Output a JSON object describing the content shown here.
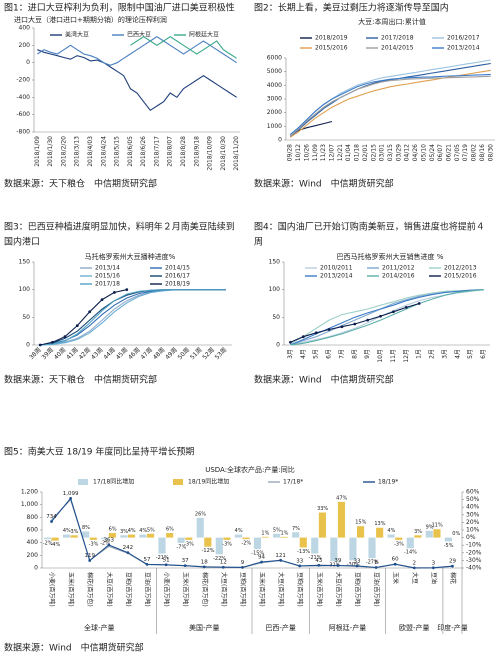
{
  "chart_data": [
    {
      "type": "line",
      "caption": [
        "图1：进口大豆榨利为负利，限制中国油厂进口美豆积极性"
      ],
      "title": "进口大豆（港口进口+期期分销）的理论压榨利润",
      "source": "数据来源：天下粮仓　中信期货研究部",
      "categories": [
        "2018/1/09",
        null,
        "2018/1/30",
        null,
        "2018/2/20",
        null,
        "2018/3/13",
        null,
        "2018/4/03",
        null,
        "2018/4/24",
        null,
        "2018/5/15",
        null,
        "2018/6/05",
        null,
        "2018/6/26",
        null,
        "2018/7/17",
        null,
        "2018/8/07",
        null,
        "2018/8/28",
        null,
        "2018/9/18",
        null,
        "2018/10/09",
        null,
        "2018/10/30",
        null,
        "2018/11/20"
      ],
      "series": [
        {
          "name": "美湾大豆",
          "color": "#1f3f7a",
          "values": [
            150,
            120,
            100,
            80,
            60,
            40,
            80,
            60,
            20,
            30,
            0,
            -50,
            -100,
            -150,
            -300,
            -350,
            -450,
            -550,
            -500,
            -450,
            -350,
            -400,
            -300,
            -250,
            -200,
            -150,
            -200,
            -250,
            -300,
            -350,
            -400
          ]
        },
        {
          "name": "巴西大豆",
          "color": "#4a7fc1",
          "values": [
            100,
            150,
            120,
            100,
            150,
            200,
            150,
            100,
            80,
            50,
            0,
            -30,
            0,
            50,
            100,
            150,
            200,
            250,
            300,
            250,
            200,
            150,
            100,
            150,
            200,
            250,
            200,
            150,
            100,
            50,
            0
          ]
        },
        {
          "name": "阿根廷大豆",
          "color": "#3aaa8c",
          "values": [
            null,
            null,
            null,
            null,
            null,
            null,
            null,
            null,
            null,
            null,
            null,
            null,
            null,
            null,
            200,
            250,
            300,
            250,
            200,
            250,
            300,
            250,
            200,
            150,
            100,
            150,
            200,
            250,
            150,
            100,
            50
          ]
        }
      ],
      "ylim": [
        -800,
        400
      ],
      "yticks": [
        -800,
        -600,
        -400,
        -200,
        0,
        200,
        400
      ]
    },
    {
      "type": "line",
      "caption": [
        "图2：长期上看，美豆过剩压力将逐渐传导至国内"
      ],
      "title": "大豆:本周出口:累计值",
      "source": "数据来源：Wind　中信期货研究部",
      "categories": [
        "09/28",
        "10/12",
        "10/26",
        "11/09",
        "11/23",
        "12/07",
        "12/21",
        "01/04",
        "01/18",
        "02/01",
        "02/15",
        "03/01",
        "03/15",
        "03/29",
        "04/12",
        "04/26",
        "05/10",
        "05/24",
        "06/07",
        "06/21",
        "07/05",
        "07/19",
        "08/02",
        "08/16",
        "08/30"
      ],
      "series": [
        {
          "name": "2018/2019",
          "color": "#0d1f4d",
          "values": [
            300,
            700,
            900,
            1050,
            1200,
            1350,
            null,
            null,
            null,
            null,
            null,
            null,
            null,
            null,
            null,
            null,
            null,
            null,
            null,
            null,
            null,
            null,
            null,
            null,
            null
          ]
        },
        {
          "name": "2017/2018",
          "color": "#2e5fa0",
          "values": [
            250,
            750,
            1300,
            1800,
            2300,
            2700,
            3100,
            3400,
            3700,
            3950,
            4150,
            4300,
            4400,
            4500,
            4600,
            4700,
            4800,
            4900,
            5000,
            5100,
            5200,
            5300,
            5400,
            5500,
            5600
          ]
        },
        {
          "name": "2016/2017",
          "color": "#9cc3e0",
          "values": [
            300,
            900,
            1500,
            2100,
            2600,
            3000,
            3400,
            3700,
            4000,
            4200,
            4400,
            4550,
            4650,
            4750,
            4850,
            4950,
            5050,
            5150,
            5250,
            5350,
            5450,
            5550,
            5650,
            5750,
            5850
          ]
        },
        {
          "name": "2015/2016",
          "color": "#e0a050",
          "values": [
            200,
            600,
            1100,
            1600,
            2000,
            2400,
            2700,
            3000,
            3200,
            3400,
            3600,
            3750,
            3900,
            4000,
            4100,
            4200,
            4300,
            4400,
            4500,
            4600,
            4700,
            4800,
            4900,
            5000,
            5100
          ]
        },
        {
          "name": "2014/2015",
          "color": "#a0a0a0",
          "values": [
            300,
            800,
            1400,
            1900,
            2400,
            2800,
            3100,
            3400,
            3700,
            3900,
            4100,
            4250,
            4350,
            4400,
            4450,
            4480,
            4500,
            4520,
            4540,
            4560,
            4580,
            4600,
            4620,
            4640,
            4660
          ]
        },
        {
          "name": "2013/2014",
          "color": "#3d7cc9",
          "values": [
            400,
            900,
            1500,
            2100,
            2600,
            3000,
            3300,
            3600,
            3900,
            4100,
            4250,
            4350,
            4450,
            4500,
            4550,
            4580,
            4600,
            4620,
            4650,
            4680,
            4700,
            4720,
            4750,
            4770,
            4800
          ]
        }
      ],
      "ylim": [
        0,
        6000
      ],
      "yticks": [
        0,
        1000,
        2000,
        3000,
        4000,
        5000,
        6000
      ]
    },
    {
      "type": "line",
      "caption": [
        "图3：巴西豆种植进度明显加快，料明年２月南美豆陆续到",
        "国内港口"
      ],
      "title": "马托格罗索州大豆播种进度%",
      "source": "数据来源：天下粮仓　中信期货研究部",
      "categories": [
        "38周",
        "39周",
        "40周",
        "41周",
        "42周",
        "43周",
        "44周",
        "45周",
        "46周",
        "47周",
        "48周",
        "49周",
        "50周",
        "51周",
        "52周",
        "53周"
      ],
      "series": [
        {
          "name": "2013/14",
          "color": "#8faac8",
          "values": [
            0,
            2,
            5,
            12,
            25,
            45,
            65,
            80,
            90,
            96,
            99,
            100,
            100,
            100,
            100,
            100
          ]
        },
        {
          "name": "2014/15",
          "color": "#2f6db5",
          "values": [
            0,
            3,
            8,
            18,
            35,
            55,
            72,
            85,
            93,
            97,
            99,
            100,
            100,
            100,
            100,
            100
          ]
        },
        {
          "name": "2015/16",
          "color": "#6cb0d6",
          "values": [
            0,
            1,
            4,
            10,
            22,
            40,
            60,
            76,
            88,
            95,
            98,
            100,
            100,
            100,
            100,
            100
          ]
        },
        {
          "name": "2016/17",
          "color": "#15466f",
          "values": [
            0,
            4,
            12,
            25,
            45,
            65,
            80,
            90,
            96,
            99,
            100,
            100,
            100,
            100,
            100,
            100
          ]
        },
        {
          "name": "2017/18",
          "color": "#4fa3c7",
          "values": [
            0,
            2,
            7,
            20,
            40,
            62,
            80,
            92,
            97,
            99,
            100,
            100,
            100,
            100,
            100,
            100
          ]
        },
        {
          "name": "2018/19",
          "color": "#0d1f4d",
          "markers": true,
          "values": [
            0,
            5,
            15,
            35,
            60,
            82,
            95,
            100,
            null,
            null,
            null,
            null,
            null,
            null,
            null,
            null
          ]
        }
      ],
      "ylim": [
        0,
        150
      ],
      "yticks": [
        0,
        50,
        100,
        150
      ]
    },
    {
      "type": "line",
      "caption": [
        "图4：国内油厂已开始订购南美新豆，销售进度也将提前４",
        "周"
      ],
      "title": "巴西马托格罗索州大豆销售进度 %",
      "source": "数据来源：Wind　中信期货研究部",
      "categories": [
        "3月",
        "4月",
        "5月",
        "6月",
        "7月",
        "8月",
        "9月",
        "10月",
        "11月",
        "12月",
        "1月",
        "2月",
        "3月",
        "4月",
        "5月",
        "6月"
      ],
      "series": [
        {
          "name": "2010/2011",
          "color": "#b8cde0",
          "values": [
            0,
            5,
            10,
            15,
            22,
            30,
            40,
            52,
            62,
            72,
            80,
            86,
            90,
            94,
            97,
            100
          ]
        },
        {
          "name": "2011/2012",
          "color": "#7fa7cf",
          "values": [
            0,
            8,
            15,
            25,
            35,
            45,
            55,
            65,
            75,
            82,
            88,
            92,
            95,
            97,
            99,
            100
          ]
        },
        {
          "name": "2012/2013",
          "color": "#9ed0c8",
          "values": [
            2,
            15,
            30,
            45,
            55,
            60,
            65,
            72,
            78,
            85,
            90,
            94,
            97,
            98,
            99,
            100
          ]
        },
        {
          "name": "2013/2014",
          "color": "#3d7cc9",
          "values": [
            0,
            10,
            20,
            30,
            40,
            50,
            58,
            65,
            72,
            80,
            86,
            91,
            95,
            97,
            99,
            100
          ]
        },
        {
          "name": "2014/2016",
          "color": "#5bb0a8",
          "values": [
            0,
            3,
            8,
            14,
            20,
            28,
            36,
            45,
            55,
            65,
            75,
            83,
            90,
            95,
            98,
            100
          ]
        },
        {
          "name": "2015/2016",
          "color": "#0d1f4d",
          "markers": true,
          "values": [
            5,
            15,
            22,
            28,
            33,
            38,
            45,
            52,
            60,
            68,
            75,
            null,
            null,
            null,
            null,
            null
          ]
        }
      ],
      "ylim": [
        0,
        150
      ],
      "yticks": [
        0,
        50,
        100,
        150
      ]
    },
    {
      "type": "combo",
      "caption": [
        "图5：南美大豆 18/19 年度同比呈持平增长预期"
      ],
      "title": "USDA:全球农产品:产量:同比",
      "source": "数据来源：Wind　中信期货研究部",
      "groups": [
        {
          "name": "全球-产量",
          "categories": [
            "小麦(百万吨)",
            "玉米(百万吨)",
            "棉花(百万包)",
            "大豆(百万吨)",
            "豆粕(百万吨)",
            "豆油(百万吨)"
          ]
        },
        {
          "name": "美国-产量",
          "categories": [
            "小麦(百万吨)",
            "玉米(百万吨)",
            "棉花(百万包)",
            "大豆(百万吨)",
            "豆粕(百万吨)"
          ]
        },
        {
          "name": "巴西-产量",
          "categories": [
            "玉米(百万吨)",
            "大豆(百万吨)",
            "豆粕(百万吨)"
          ]
        },
        {
          "name": "阿根廷-产量",
          "categories": [
            "玉米(百万吨)",
            "大豆(百万吨)",
            "豆粕(百万吨)",
            "豆油(百万吨)"
          ]
        },
        {
          "name": "欧盟-产量",
          "categories": [
            "玉米",
            "大豆",
            "豆油"
          ]
        },
        {
          "name": "印度-产量",
          "categories": [
            "棉花"
          ]
        }
      ],
      "series": [
        {
          "name": "17/18同比增加",
          "kind": "bar",
          "axis": "y2",
          "color": "#bcd6e4",
          "values": [
            -2,
            4,
            8,
            -2,
            3,
            4,
            -21,
            -7,
            26,
            -22,
            4,
            -15,
            5,
            7,
            -21,
            -31,
            -30,
            -27,
            4,
            -14,
            9,
            -5
          ],
          "value_labels": [
            "-2%",
            "4%",
            "8%",
            "-2%",
            "3%",
            "4%",
            "-21%",
            "-7%",
            "26%",
            "-22%",
            "4%",
            "-15%",
            "5%",
            "7%",
            "-21%",
            "-31%",
            "-30%",
            "-27%",
            "4%",
            "-14%",
            "9%",
            "-5%"
          ]
        },
        {
          "name": "18/19同比增加",
          "kind": "bar",
          "axis": "y2",
          "color": "#e8c24a",
          "values": [
            -4,
            3,
            -3,
            6,
            4,
            5,
            6,
            -3,
            -12,
            -3,
            -2,
            1,
            1,
            -13,
            33,
            47,
            15,
            13,
            -3,
            3,
            11,
            0
          ],
          "value_labels": [
            "-4%",
            "3%",
            "-3%",
            "6%",
            "4%",
            "5%",
            "6%",
            "-3%",
            "-12%",
            "-3%",
            "-2%",
            "1%",
            "1%",
            "-13%",
            "33%",
            "47%",
            "15%",
            "13%",
            "-3%",
            "3%",
            "11%",
            "0%"
          ]
        },
        {
          "name": "17/18*",
          "color": "#9aa9b9",
          "values": [
            763,
            1077,
            123,
            341,
            232,
            55,
            47,
            37,
            21,
            12,
            9,
            82,
            120,
            31,
            32,
            38,
            27,
            7,
            62,
            2,
            3,
            29
          ]
        },
        {
          "name": "18/19*",
          "color": "#1f4f8c",
          "markers": true,
          "values": [
            734,
            1099,
            119,
            363,
            242,
            57,
            51,
            37,
            18,
            12,
            9,
            94,
            121,
            33,
            43,
            39,
            33,
            8,
            60,
            2,
            3,
            29
          ],
          "value_labels": [
            "734",
            "1,099",
            "119",
            "363",
            "242",
            "57",
            "51",
            "37",
            "18",
            "12",
            "9",
            "94",
            "121",
            "33",
            "43",
            "39",
            "33",
            "8",
            "60",
            "2",
            "3",
            "29"
          ]
        }
      ],
      "ylim": [
        0,
        1200
      ],
      "yticks": [
        0,
        200,
        400,
        600,
        800,
        {
          "value": 1000,
          "label": "1,000"
        },
        {
          "value": 1200,
          "label": "1,200"
        }
      ],
      "y2lim": [
        -40,
        60
      ],
      "y2ticks": [
        {
          "value": -40,
          "label": "-40%"
        },
        {
          "value": -30,
          "label": "-30%"
        },
        {
          "value": -20,
          "label": "-20%"
        },
        {
          "value": -10,
          "label": "-10%"
        },
        {
          "value": 0,
          "label": "0%"
        },
        {
          "value": 10,
          "label": "10%"
        },
        {
          "value": 20,
          "label": "20%"
        },
        {
          "value": 30,
          "label": "30%"
        },
        {
          "value": 40,
          "label": "40%"
        },
        {
          "value": 50,
          "label": "50%"
        },
        {
          "value": 60,
          "label": "60%"
        }
      ]
    }
  ]
}
